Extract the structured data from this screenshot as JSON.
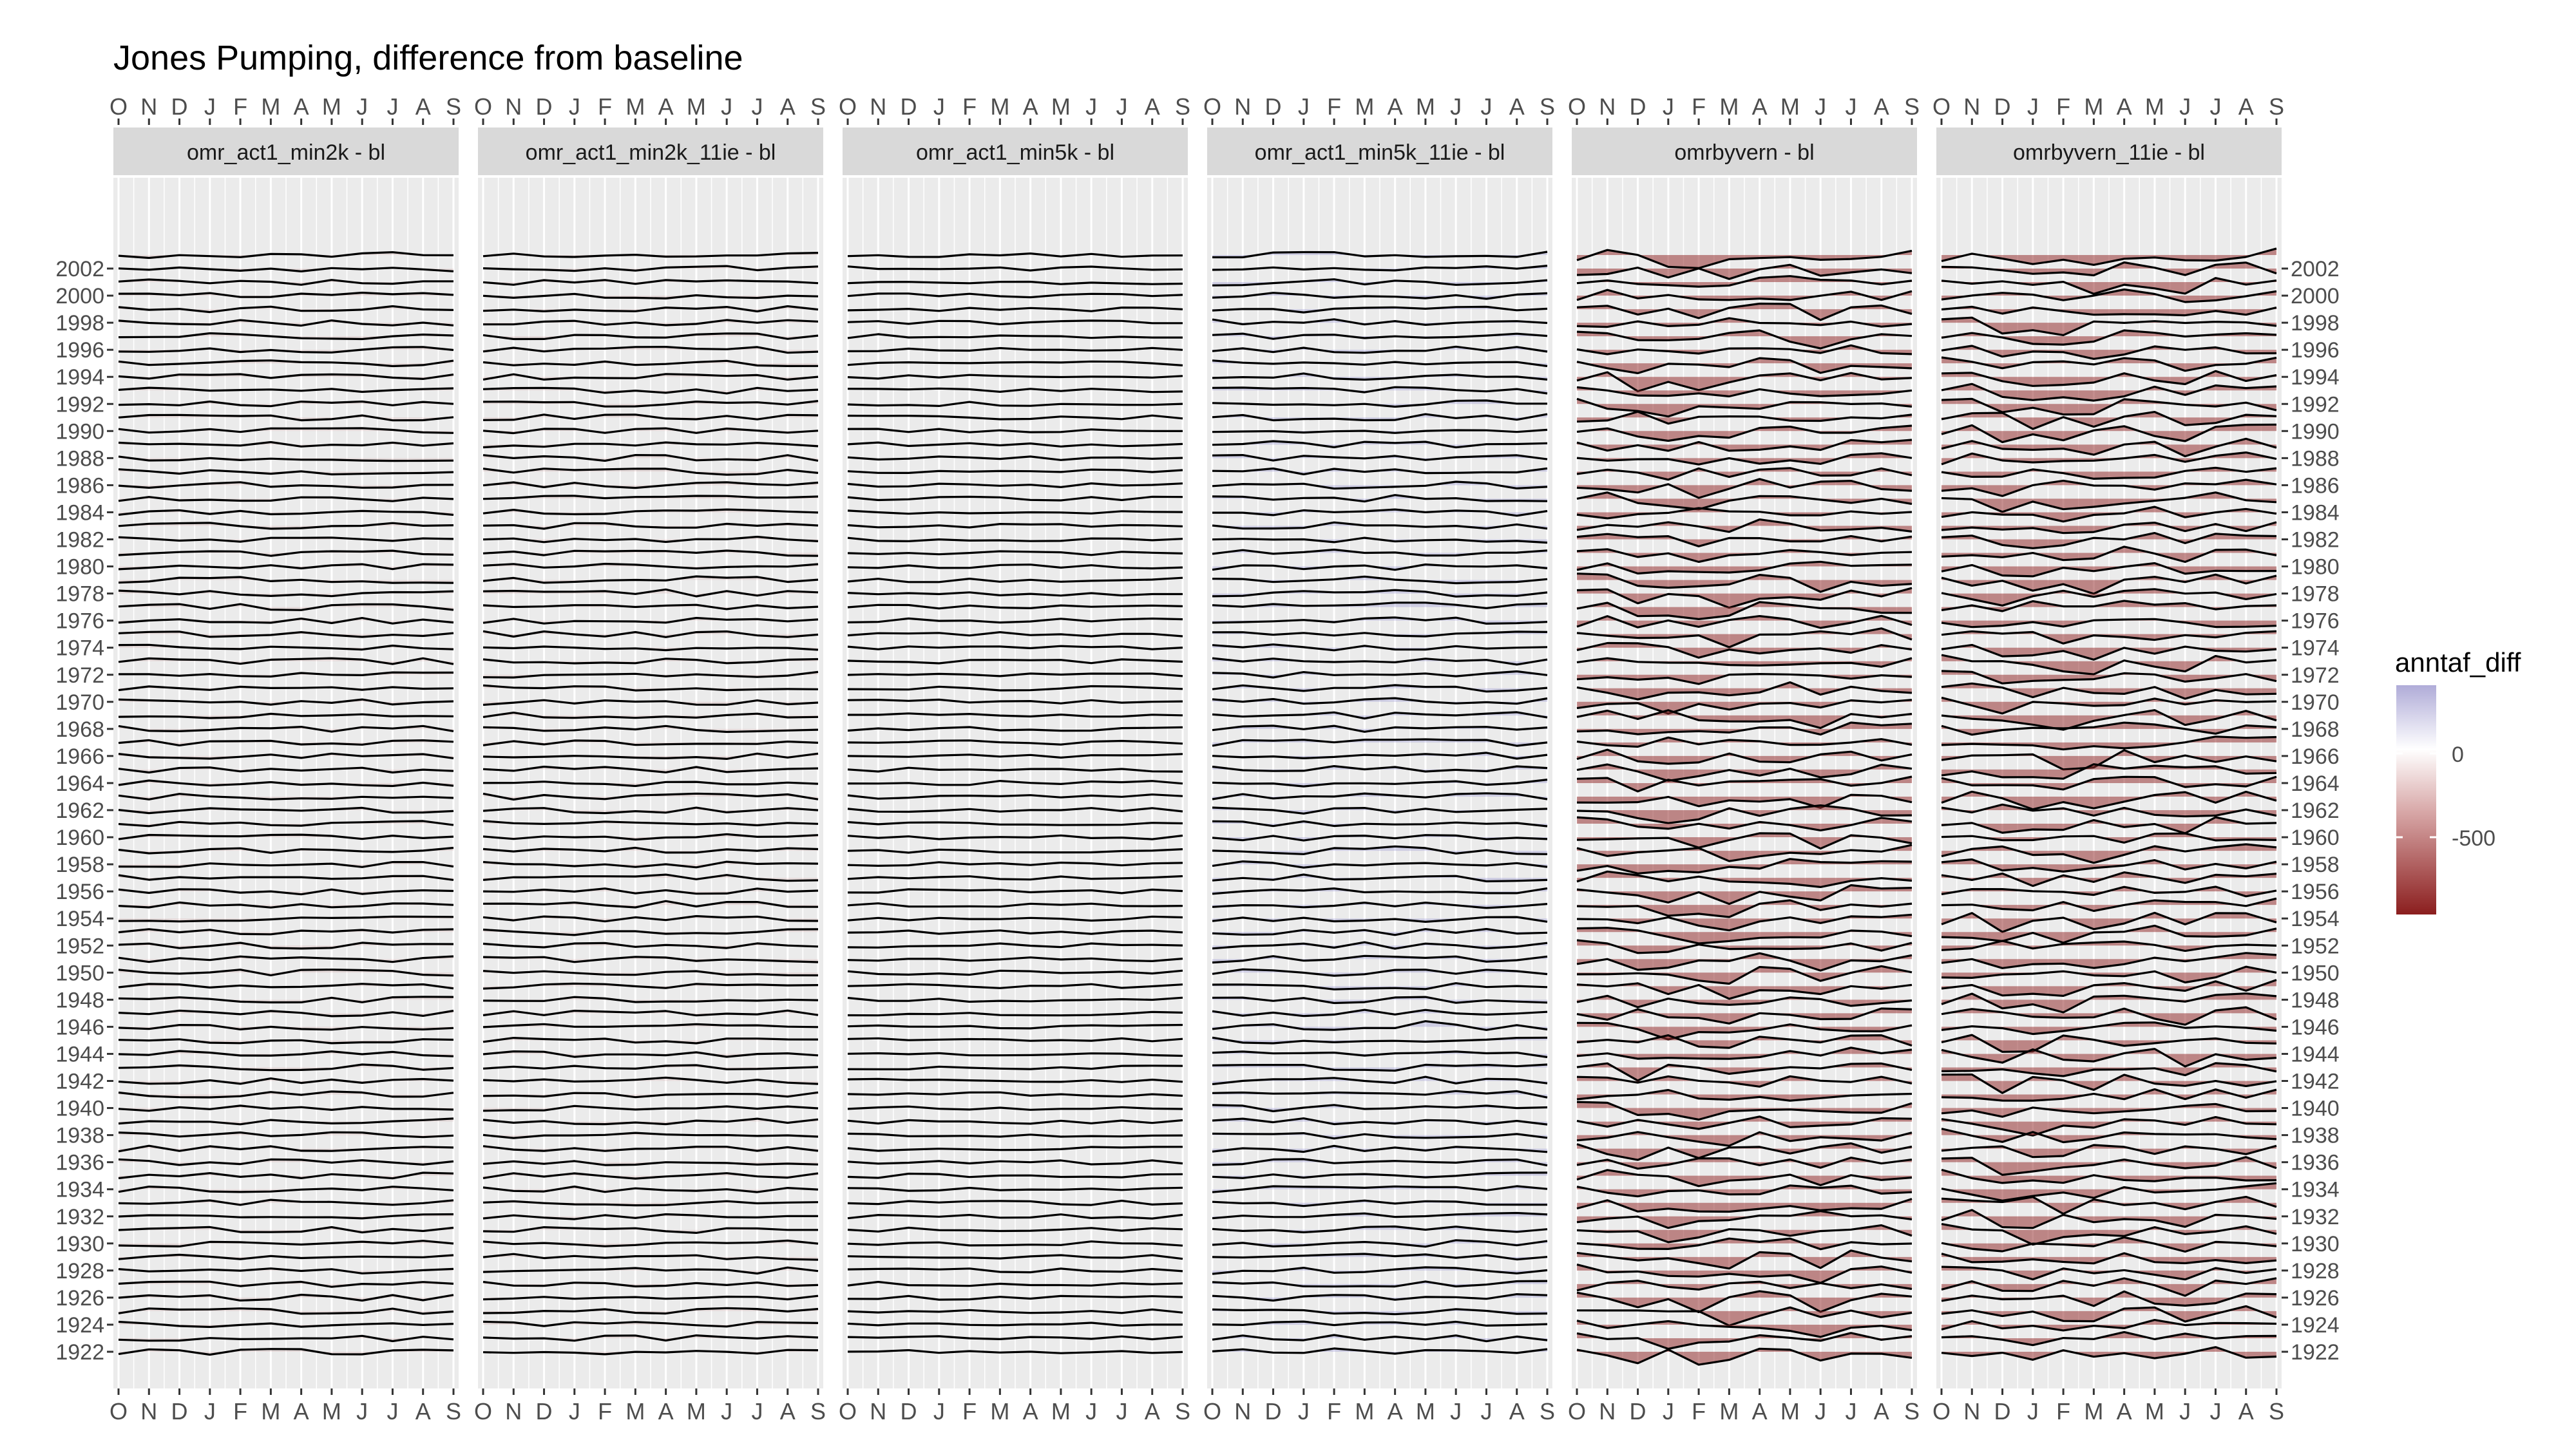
{
  "title": "Jones Pumping, difference from baseline",
  "chart_data": {
    "type": "ridgeline",
    "title": "Jones Pumping, difference from baseline",
    "xlabel": "",
    "ylabel": "",
    "x_ticks": [
      "O",
      "N",
      "D",
      "J",
      "F",
      "M",
      "A",
      "M",
      "J",
      "J",
      "A",
      "S"
    ],
    "y_ticks": [
      "2002",
      "2000",
      "1998",
      "1996",
      "1994",
      "1992",
      "1990",
      "1988",
      "1986",
      "1984",
      "1982",
      "1980",
      "1978",
      "1976",
      "1974",
      "1972",
      "1970",
      "1968",
      "1966",
      "1964",
      "1962",
      "1960",
      "1958",
      "1956",
      "1954",
      "1952",
      "1950",
      "1948",
      "1946",
      "1944",
      "1942",
      "1940",
      "1938",
      "1936",
      "1934",
      "1932",
      "1930",
      "1928",
      "1926",
      "1924",
      "1922"
    ],
    "year_range": [
      1922,
      2003
    ],
    "grid": true,
    "legend": {
      "title": "anntaf_diff",
      "breaks": [
        "0",
        "-500"
      ],
      "position": "right",
      "colors": {
        "high": "#b0acd8",
        "mid": "#ffffff",
        "low": "#8b1e1e"
      }
    },
    "panels": [
      {
        "label": "omr_act1_min2k - bl",
        "style": {
          "amp": 0.14,
          "neg": 0.02,
          "pos": 0.0
        }
      },
      {
        "label": "omr_act1_min2k_11ie - bl",
        "style": {
          "amp": 0.14,
          "neg": 0.01,
          "pos": 0.05
        }
      },
      {
        "label": "omr_act1_min5k - bl",
        "style": {
          "amp": 0.1,
          "neg": 0.0,
          "pos": 0.0
        }
      },
      {
        "label": "omr_act1_min5k_11ie - bl",
        "style": {
          "amp": 0.16,
          "neg": 0.01,
          "pos": 0.14
        }
      },
      {
        "label": "omrbyvern - bl",
        "style": {
          "amp": 0.3,
          "neg": 0.75,
          "pos": 0.0
        }
      },
      {
        "label": "omrbyvern_11ie - bl",
        "style": {
          "amp": 0.3,
          "neg": 0.7,
          "pos": 0.0
        }
      }
    ]
  },
  "colors": {
    "panel_bg": "#ebebeb",
    "strip_bg": "#d9d9d9",
    "grid": "#ffffff",
    "line": "#000000",
    "text": "#4d4d4d",
    "title": "#000000"
  }
}
